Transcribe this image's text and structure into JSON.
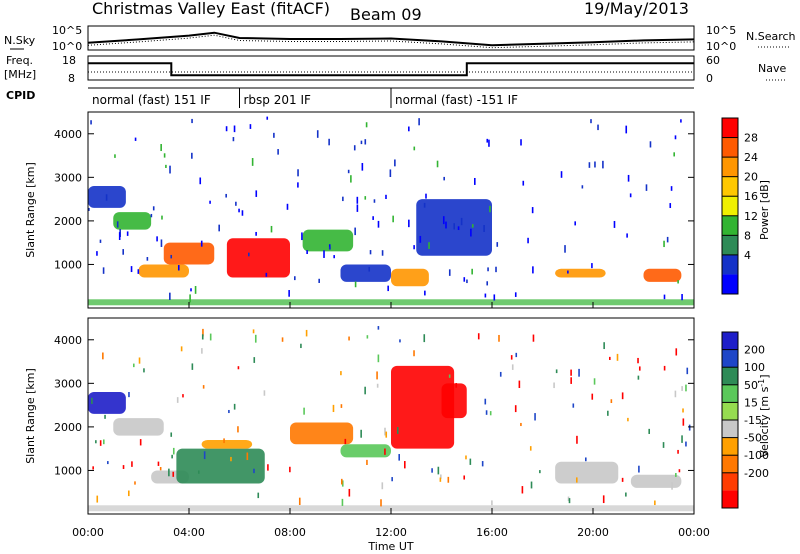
{
  "header": {
    "title": "Christmas Valley East (fitACF)",
    "beam": "Beam 09",
    "date": "19/May/2013"
  },
  "noise_panel": {
    "left_label": "N.Sky",
    "right_label": "N.Search",
    "left_ticks": [
      "10^5",
      "10^0"
    ],
    "right_ticks": [
      "10^5",
      "10^0"
    ]
  },
  "freq_panel": {
    "left_label_1": "Freq.",
    "left_label_2": "[MHz]",
    "right_label": "Nave",
    "left_ticks": [
      "18",
      "8"
    ],
    "right_ticks": [
      "60",
      "0"
    ]
  },
  "cpid_panel": {
    "label": "CPID",
    "segments": [
      {
        "label": "normal (fast) 151 IF",
        "start": 0,
        "end": 6
      },
      {
        "label": "rbsp 201 IF",
        "start": 6,
        "end": 12
      },
      {
        "label": "normal (fast) -151 IF",
        "start": 12,
        "end": 24
      }
    ]
  },
  "axes": {
    "ylabel": "Slant Range [km]",
    "yticks": [
      "1000",
      "2000",
      "3000",
      "4000"
    ],
    "xticks": [
      "00:00",
      "04:00",
      "08:00",
      "12:00",
      "16:00",
      "20:00",
      "00:00"
    ],
    "xlabel": "Time UT"
  },
  "power_scale": {
    "label": "Power [dB]",
    "ticks": [
      "28",
      "24",
      "20",
      "16",
      "12",
      "8",
      "4"
    ],
    "colors": [
      "#ff0000",
      "#ff5a00",
      "#ff9600",
      "#ffc800",
      "#f0f000",
      "#32b432",
      "#2e8b57",
      "#1432c8",
      "#0000ff"
    ]
  },
  "velocity_scale": {
    "label": "Velocity [m s^-1]",
    "ticks": [
      "200",
      "100",
      "50",
      "15",
      "-15",
      "-50",
      "-100",
      "-200"
    ],
    "colors": [
      "#1e1ec8",
      "#1e46c8",
      "#2e8b57",
      "#5ac85a",
      "#96dc50",
      "#c8c8c8",
      "#ffa000",
      "#ff7800",
      "#ff3c00",
      "#ff0000"
    ]
  },
  "chart_data": [
    {
      "type": "line",
      "title": "N.Sky",
      "x_unit": "UT hours",
      "x": [
        0,
        2,
        4,
        5,
        6,
        8,
        10,
        12,
        14,
        16,
        18,
        20,
        22,
        24
      ],
      "values": [
        1.5,
        2.2,
        3.0,
        3.6,
        2.5,
        2.3,
        2.3,
        2.4,
        1.8,
        1.0,
        1.3,
        1.6,
        2.0,
        2.2
      ],
      "ylabel": "N.Sky",
      "log_scale": true
    },
    {
      "type": "line",
      "title": "Freq.",
      "x": [
        0,
        3.3,
        3.3,
        15.0,
        15.0,
        24
      ],
      "values": [
        15,
        15,
        10,
        10,
        15,
        15
      ],
      "ylabel": "Freq. [MHz]",
      "ylim": [
        8,
        18
      ]
    },
    {
      "type": "heatmap",
      "title": "Power",
      "x_unit": "UT hours",
      "xlim": [
        0,
        24
      ],
      "ylim": [
        0,
        4500
      ],
      "ylabel": "Slant Range [km]",
      "xlabel": "Time UT",
      "colorbar_label": "Power [dB]",
      "regions": [
        {
          "t0": 0.0,
          "t1": 1.5,
          "r0": 2300,
          "r1": 2800,
          "value": 8
        },
        {
          "t0": 1.0,
          "t1": 2.5,
          "r0": 1800,
          "r1": 2200,
          "value": 12
        },
        {
          "t0": 2.0,
          "t1": 4.0,
          "r0": 700,
          "r1": 1000,
          "value": 20
        },
        {
          "t0": 3.0,
          "t1": 5.0,
          "r0": 1000,
          "r1": 1500,
          "value": 24
        },
        {
          "t0": 5.5,
          "t1": 8.0,
          "r0": 700,
          "r1": 1600,
          "value": 28
        },
        {
          "t0": 8.5,
          "t1": 10.5,
          "r0": 1300,
          "r1": 1800,
          "value": 12
        },
        {
          "t0": 10.0,
          "t1": 12.0,
          "r0": 600,
          "r1": 1000,
          "value": 8
        },
        {
          "t0": 12.0,
          "t1": 13.5,
          "r0": 500,
          "r1": 900,
          "value": 20
        },
        {
          "t0": 13.0,
          "t1": 16.0,
          "r0": 1200,
          "r1": 2500,
          "value": 8
        },
        {
          "t0": 18.5,
          "t1": 20.5,
          "r0": 700,
          "r1": 900,
          "value": 20
        },
        {
          "t0": 22.0,
          "t1": 23.5,
          "r0": 600,
          "r1": 900,
          "value": 24
        }
      ]
    },
    {
      "type": "heatmap",
      "title": "Velocity",
      "x_unit": "UT hours",
      "xlim": [
        0,
        24
      ],
      "ylim": [
        0,
        4500
      ],
      "ylabel": "Slant Range [km]",
      "xlabel": "Time UT",
      "colorbar_label": "Velocity [m s^-1]",
      "regions": [
        {
          "t0": 0.0,
          "t1": 1.5,
          "r0": 2300,
          "r1": 2800,
          "value": 200
        },
        {
          "t0": 1.0,
          "t1": 3.0,
          "r0": 1800,
          "r1": 2200,
          "value": 0
        },
        {
          "t0": 2.5,
          "t1": 4.0,
          "r0": 700,
          "r1": 1000,
          "value": 0
        },
        {
          "t0": 3.5,
          "t1": 7.0,
          "r0": 700,
          "r1": 1500,
          "value": 50
        },
        {
          "t0": 4.5,
          "t1": 6.5,
          "r0": 1500,
          "r1": 1700,
          "value": -50
        },
        {
          "t0": 8.0,
          "t1": 10.5,
          "r0": 1600,
          "r1": 2100,
          "value": -100
        },
        {
          "t0": 10.0,
          "t1": 12.0,
          "r0": 1300,
          "r1": 1600,
          "value": 15
        },
        {
          "t0": 12.0,
          "t1": 14.5,
          "r0": 1500,
          "r1": 3400,
          "value": -200
        },
        {
          "t0": 14.0,
          "t1": 15.0,
          "r0": 2200,
          "r1": 3000,
          "value": -200
        },
        {
          "t0": 18.5,
          "t1": 21.0,
          "r0": 700,
          "r1": 1200,
          "value": 0
        },
        {
          "t0": 21.5,
          "t1": 23.5,
          "r0": 600,
          "r1": 900,
          "value": 0
        }
      ]
    }
  ]
}
